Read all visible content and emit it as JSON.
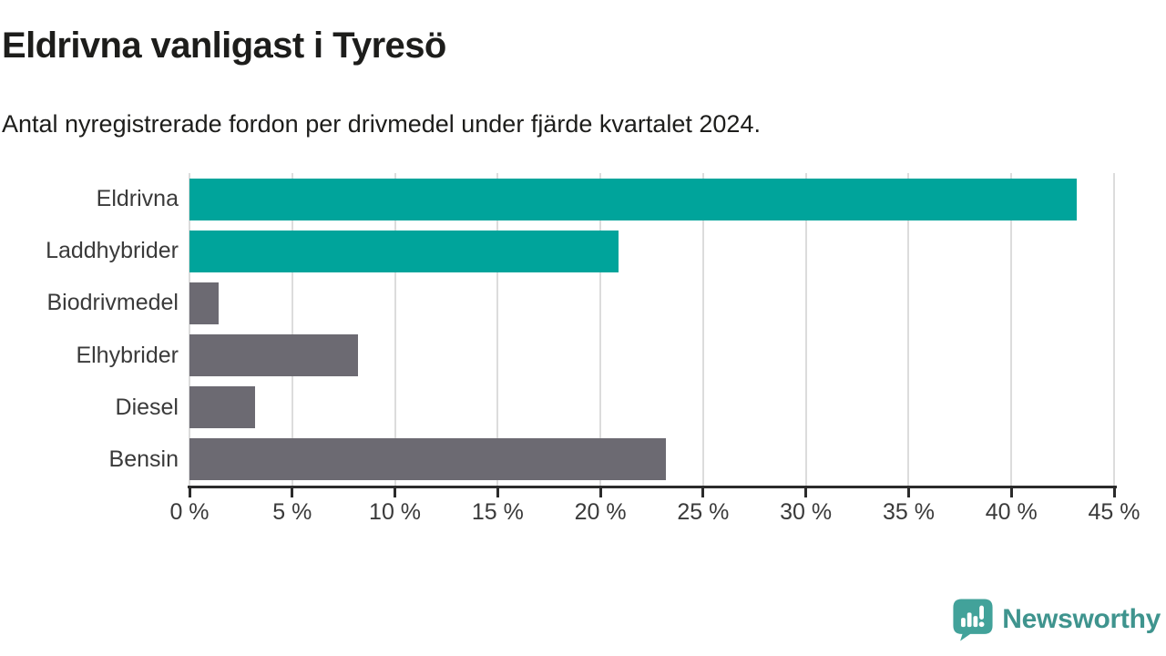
{
  "header": {
    "title": "Eldrivna vanligast i Tyresö",
    "subtitle": "Antal nyregistrerade fordon per drivmedel under fjärde kvartalet 2024."
  },
  "chart_data": {
    "type": "bar",
    "orientation": "horizontal",
    "title": "Eldrivna vanligast i Tyresö",
    "subtitle": "Antal nyregistrerade fordon per drivmedel under fjärde kvartalet 2024.",
    "categories": [
      "Eldrivna",
      "Laddhybrider",
      "Biodrivmedel",
      "Elhybrider",
      "Diesel",
      "Bensin"
    ],
    "values": [
      43.2,
      20.9,
      1.4,
      8.2,
      3.2,
      23.2
    ],
    "unit": "%",
    "xlim": [
      0,
      45
    ],
    "x_ticks": [
      0,
      5,
      10,
      15,
      20,
      25,
      30,
      35,
      40,
      45
    ],
    "x_tick_labels": [
      "0 %",
      "5 %",
      "10 %",
      "15 %",
      "20 %",
      "25 %",
      "30 %",
      "35 %",
      "40 %",
      "45 %"
    ],
    "bar_colors": [
      "#00a49b",
      "#00a49b",
      "#6c6a72",
      "#6c6a72",
      "#6c6a72",
      "#6c6a72"
    ],
    "grid": true,
    "legend": "none",
    "xlabel": "",
    "ylabel": ""
  },
  "colors": {
    "accent_teal": "#00a49b",
    "neutral_gray": "#6c6a72",
    "gridline": "#dcdcdc",
    "axis": "#2b2b2b",
    "text_dark": "#1d1d1b",
    "text_label": "#3a3a3a",
    "logo_teal": "#3f948e"
  },
  "footer": {
    "brand": "Newsworthy"
  }
}
